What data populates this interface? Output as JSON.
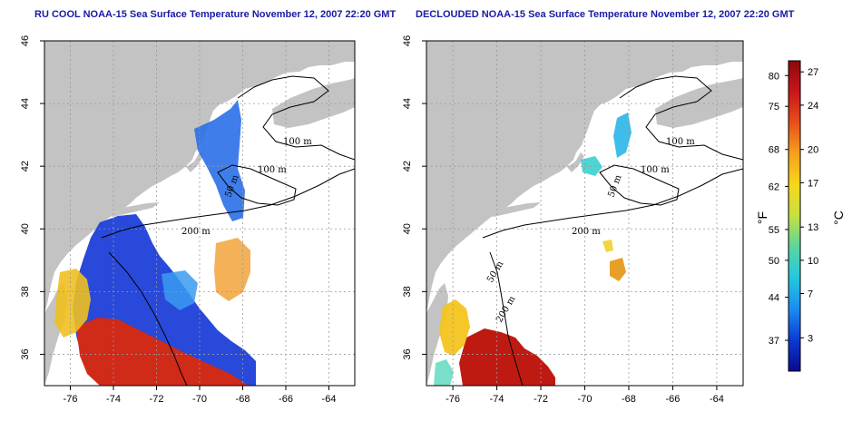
{
  "titles": {
    "left": "RU COOL NOAA-15 Sea Surface Temperature November 12, 2007 22:20 GMT",
    "right": "DECLOUDED NOAA-15 Sea Surface Temperature November 12, 2007 22:20 GMT"
  },
  "axes": {
    "lon_min": -77.2,
    "lon_max": -62.8,
    "lat_min": 35.0,
    "lat_max": 46.0,
    "lon_ticks": [
      -76,
      -74,
      -72,
      -70,
      -68,
      -66,
      -64
    ],
    "lat_ticks": [
      36,
      38,
      40,
      42,
      44,
      46
    ],
    "lon_tick_labels": [
      "-76",
      "-74",
      "-72",
      "-70",
      "-68",
      "-66",
      "-64"
    ],
    "lat_tick_labels": [
      "36",
      "38",
      "40",
      "42",
      "44",
      "46"
    ],
    "grid": true
  },
  "contours": {
    "left_labels": [
      "100 m",
      "100 m",
      "50 m",
      "200 m"
    ],
    "right_labels": [
      "100 m",
      "100 m",
      "50 m",
      "200 m",
      "50 m",
      "200 m"
    ]
  },
  "colorbar": {
    "fahrenheit_ticks": [
      "80",
      "75",
      "68",
      "62",
      "55",
      "50",
      "44",
      "37"
    ],
    "celsius_ticks": [
      "27",
      "24",
      "20",
      "17",
      "13",
      "10",
      "7",
      "3"
    ],
    "fahrenheit_unit": "°F",
    "celsius_unit": "°C",
    "celsius_min": 0,
    "celsius_max": 28,
    "colors": [
      "#0a0a8c",
      "#0b3bd6",
      "#1a8cf0",
      "#22c8e0",
      "#5ad6a0",
      "#c6e040",
      "#f6d81a",
      "#f6a21a",
      "#e8501a",
      "#c8161a",
      "#8c0a0a"
    ]
  },
  "colors": {
    "land": "#c3c3c3",
    "sea": "#ffffff",
    "grid": "#9a9a9a",
    "title": "#1a1aa6"
  }
}
